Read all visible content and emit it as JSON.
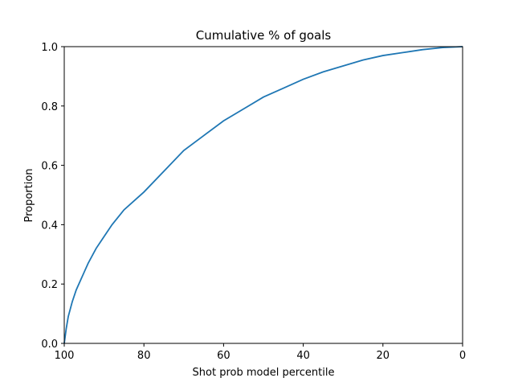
{
  "chart_data": {
    "type": "line",
    "title": "Cumulative % of goals",
    "x_label": "Shot prob model percentile",
    "y_label": "Proportion",
    "x": [
      100,
      99.5,
      99,
      98,
      97,
      96,
      95,
      94,
      92,
      90,
      88,
      85,
      80,
      75,
      70,
      65,
      60,
      55,
      50,
      45,
      40,
      35,
      30,
      25,
      20,
      15,
      10,
      5,
      0
    ],
    "series": [
      {
        "color": "#1f77b4",
        "values": [
          0,
          0.05,
          0.09,
          0.14,
          0.18,
          0.21,
          0.24,
          0.27,
          0.32,
          0.36,
          0.4,
          0.45,
          0.51,
          0.58,
          0.65,
          0.7,
          0.75,
          0.79,
          0.83,
          0.86,
          0.89,
          0.915,
          0.935,
          0.955,
          0.97,
          0.98,
          0.99,
          0.997,
          1.0
        ]
      }
    ],
    "xlim": [
      100,
      0
    ],
    "ylim": [
      0,
      1
    ],
    "xticks": [
      100,
      80,
      60,
      40,
      20,
      0
    ],
    "yticks": [
      {
        "value": 0,
        "label": "0.0"
      },
      0.2,
      0.4,
      0.6,
      0.8,
      {
        "value": 1,
        "label": "1.0"
      }
    ]
  }
}
